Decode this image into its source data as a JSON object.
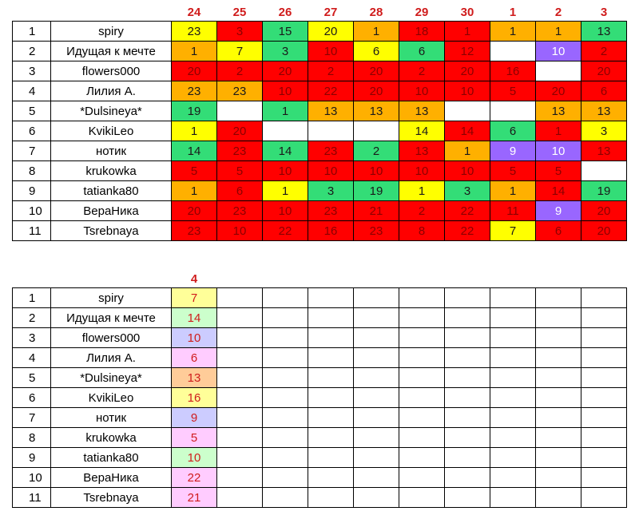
{
  "table1": {
    "headers": [
      "24",
      "25",
      "26",
      "27",
      "28",
      "29",
      "30",
      "1",
      "2",
      "3"
    ],
    "rows": [
      {
        "num": "1",
        "name": "spiry",
        "cells": [
          {
            "v": "23",
            "c": "yellow"
          },
          {
            "v": "3",
            "c": "red"
          },
          {
            "v": "15",
            "c": "green"
          },
          {
            "v": "20",
            "c": "yellow"
          },
          {
            "v": "1",
            "c": "orange"
          },
          {
            "v": "18",
            "c": "red"
          },
          {
            "v": "1",
            "c": "red"
          },
          {
            "v": "1",
            "c": "orange"
          },
          {
            "v": "1",
            "c": "orange"
          },
          {
            "v": "13",
            "c": "green"
          }
        ]
      },
      {
        "num": "2",
        "name": "Идущая к мечте",
        "cells": [
          {
            "v": "1",
            "c": "orange"
          },
          {
            "v": "7",
            "c": "yellow"
          },
          {
            "v": "3",
            "c": "green"
          },
          {
            "v": "10",
            "c": "red"
          },
          {
            "v": "6",
            "c": "yellow"
          },
          {
            "v": "6",
            "c": "green"
          },
          {
            "v": "12",
            "c": "red"
          },
          {
            "v": "",
            "c": "white"
          },
          {
            "v": "10",
            "c": "purple"
          },
          {
            "v": "2",
            "c": "red"
          }
        ]
      },
      {
        "num": "3",
        "name": "flowers000",
        "cells": [
          {
            "v": "20",
            "c": "red"
          },
          {
            "v": "2",
            "c": "red"
          },
          {
            "v": "20",
            "c": "red"
          },
          {
            "v": "2",
            "c": "red"
          },
          {
            "v": "20",
            "c": "red"
          },
          {
            "v": "2",
            "c": "red"
          },
          {
            "v": "20",
            "c": "red"
          },
          {
            "v": "16",
            "c": "red"
          },
          {
            "v": "",
            "c": "white"
          },
          {
            "v": "20",
            "c": "red"
          }
        ]
      },
      {
        "num": "4",
        "name": "Лилия А.",
        "cells": [
          {
            "v": "23",
            "c": "orange"
          },
          {
            "v": "23",
            "c": "orange"
          },
          {
            "v": "10",
            "c": "red"
          },
          {
            "v": "22",
            "c": "red"
          },
          {
            "v": "20",
            "c": "red"
          },
          {
            "v": "10",
            "c": "red"
          },
          {
            "v": "10",
            "c": "red"
          },
          {
            "v": "5",
            "c": "red"
          },
          {
            "v": "20",
            "c": "red"
          },
          {
            "v": "6",
            "c": "red"
          }
        ]
      },
      {
        "num": "5",
        "name": "*Dulsineya*",
        "cells": [
          {
            "v": "19",
            "c": "green"
          },
          {
            "v": "",
            "c": "white"
          },
          {
            "v": "1",
            "c": "green"
          },
          {
            "v": "13",
            "c": "orange"
          },
          {
            "v": "13",
            "c": "orange"
          },
          {
            "v": "13",
            "c": "orange"
          },
          {
            "v": "",
            "c": "white"
          },
          {
            "v": "",
            "c": "white"
          },
          {
            "v": "13",
            "c": "orange"
          },
          {
            "v": "13",
            "c": "orange"
          }
        ]
      },
      {
        "num": "6",
        "name": "KvikiLeo",
        "cells": [
          {
            "v": "1",
            "c": "yellow"
          },
          {
            "v": "20",
            "c": "red"
          },
          {
            "v": "",
            "c": "white"
          },
          {
            "v": "",
            "c": "white"
          },
          {
            "v": "",
            "c": "white"
          },
          {
            "v": "14",
            "c": "yellow"
          },
          {
            "v": "14",
            "c": "red"
          },
          {
            "v": "6",
            "c": "green"
          },
          {
            "v": "1",
            "c": "red"
          },
          {
            "v": "3",
            "c": "yellow"
          }
        ]
      },
      {
        "num": "7",
        "name": "нотик",
        "cells": [
          {
            "v": "14",
            "c": "green"
          },
          {
            "v": "23",
            "c": "red"
          },
          {
            "v": "14",
            "c": "green"
          },
          {
            "v": "23",
            "c": "red"
          },
          {
            "v": "2",
            "c": "green"
          },
          {
            "v": "13",
            "c": "red"
          },
          {
            "v": "1",
            "c": "orange"
          },
          {
            "v": "9",
            "c": "purple"
          },
          {
            "v": "10",
            "c": "purple"
          },
          {
            "v": "13",
            "c": "red"
          }
        ]
      },
      {
        "num": "8",
        "name": "krukowka",
        "cells": [
          {
            "v": "5",
            "c": "red"
          },
          {
            "v": "5",
            "c": "red"
          },
          {
            "v": "10",
            "c": "red"
          },
          {
            "v": "10",
            "c": "red"
          },
          {
            "v": "10",
            "c": "red"
          },
          {
            "v": "10",
            "c": "red"
          },
          {
            "v": "10",
            "c": "red"
          },
          {
            "v": "5",
            "c": "red"
          },
          {
            "v": "5",
            "c": "red"
          },
          {
            "v": "",
            "c": "white"
          }
        ]
      },
      {
        "num": "9",
        "name": "tatianka80",
        "cells": [
          {
            "v": "1",
            "c": "orange"
          },
          {
            "v": "6",
            "c": "red"
          },
          {
            "v": "1",
            "c": "yellow"
          },
          {
            "v": "3",
            "c": "green"
          },
          {
            "v": "19",
            "c": "green"
          },
          {
            "v": "1",
            "c": "yellow"
          },
          {
            "v": "3",
            "c": "green"
          },
          {
            "v": "1",
            "c": "orange"
          },
          {
            "v": "14",
            "c": "red"
          },
          {
            "v": "19",
            "c": "green"
          }
        ]
      },
      {
        "num": "10",
        "name": "ВераНика",
        "cells": [
          {
            "v": "20",
            "c": "red"
          },
          {
            "v": "23",
            "c": "red"
          },
          {
            "v": "10",
            "c": "red"
          },
          {
            "v": "23",
            "c": "red"
          },
          {
            "v": "21",
            "c": "red"
          },
          {
            "v": "2",
            "c": "red"
          },
          {
            "v": "22",
            "c": "red"
          },
          {
            "v": "11",
            "c": "red"
          },
          {
            "v": "9",
            "c": "purple"
          },
          {
            "v": "20",
            "c": "red"
          }
        ]
      },
      {
        "num": "11",
        "name": "Tsrebnaya",
        "cells": [
          {
            "v": "23",
            "c": "red"
          },
          {
            "v": "10",
            "c": "red"
          },
          {
            "v": "22",
            "c": "red"
          },
          {
            "v": "16",
            "c": "red"
          },
          {
            "v": "23",
            "c": "red"
          },
          {
            "v": "8",
            "c": "red"
          },
          {
            "v": "22",
            "c": "red"
          },
          {
            "v": "7",
            "c": "yellow"
          },
          {
            "v": "6",
            "c": "red"
          },
          {
            "v": "20",
            "c": "red"
          }
        ]
      }
    ]
  },
  "table2": {
    "headers": [
      "4",
      "",
      "",
      "",
      "",
      "",
      "",
      "",
      "",
      ""
    ],
    "rows": [
      {
        "num": "1",
        "name": "spiry",
        "cells": [
          {
            "v": "7",
            "c": "p-yellow"
          }
        ]
      },
      {
        "num": "2",
        "name": "Идущая к мечте",
        "cells": [
          {
            "v": "14",
            "c": "p-green"
          }
        ]
      },
      {
        "num": "3",
        "name": "flowers000",
        "cells": [
          {
            "v": "10",
            "c": "p-blue"
          }
        ]
      },
      {
        "num": "4",
        "name": "Лилия А.",
        "cells": [
          {
            "v": "6",
            "c": "p-pink"
          }
        ]
      },
      {
        "num": "5",
        "name": "*Dulsineya*",
        "cells": [
          {
            "v": "13",
            "c": "p-orange"
          }
        ]
      },
      {
        "num": "6",
        "name": "KvikiLeo",
        "cells": [
          {
            "v": "16",
            "c": "p-yellow"
          }
        ]
      },
      {
        "num": "7",
        "name": "нотик",
        "cells": [
          {
            "v": "9",
            "c": "p-blue"
          }
        ]
      },
      {
        "num": "8",
        "name": "krukowka",
        "cells": [
          {
            "v": "5",
            "c": "p-pink"
          }
        ]
      },
      {
        "num": "9",
        "name": "tatianka80",
        "cells": [
          {
            "v": "10",
            "c": "p-green"
          }
        ]
      },
      {
        "num": "10",
        "name": "ВераНика",
        "cells": [
          {
            "v": "22",
            "c": "p-pink"
          }
        ]
      },
      {
        "num": "11",
        "name": "Tsrebnaya",
        "cells": [
          {
            "v": "21",
            "c": "p-pink"
          }
        ]
      }
    ]
  },
  "colors": {
    "red": "#ff0000",
    "orange": "#ffb000",
    "yellow": "#ffff00",
    "green": "#33dd77",
    "purple": "#9966ff",
    "header_text": "#d01c1c"
  }
}
